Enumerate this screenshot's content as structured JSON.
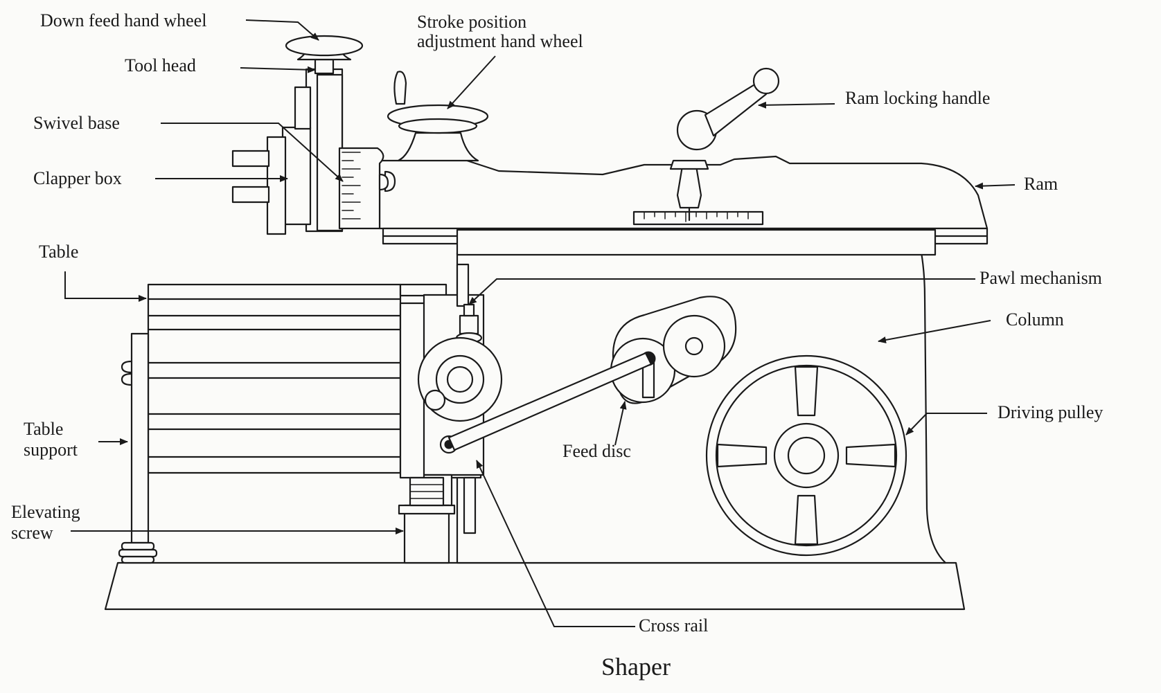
{
  "title": "Shaper",
  "labels": {
    "down_feed_hand_wheel": "Down feed hand wheel",
    "tool_head": "Tool head",
    "swivel_base": "Swivel base",
    "clapper_box": "Clapper box",
    "table": "Table",
    "table_support_1": "Table",
    "table_support_2": "support",
    "elevating_screw_1": "Elevating",
    "elevating_screw_2": "screw",
    "stroke_position_1": "Stroke position",
    "stroke_position_2": "adjustment hand wheel",
    "ram_locking_handle": "Ram locking handle",
    "ram": "Ram",
    "pawl_mechanism": "Pawl mechanism",
    "column": "Column",
    "driving_pulley": "Driving pulley",
    "feed_disc": "Feed disc",
    "cross_rail": "Cross rail"
  },
  "colors": {
    "ink": "#1a1a1a",
    "paper": "#fbfbf9"
  }
}
